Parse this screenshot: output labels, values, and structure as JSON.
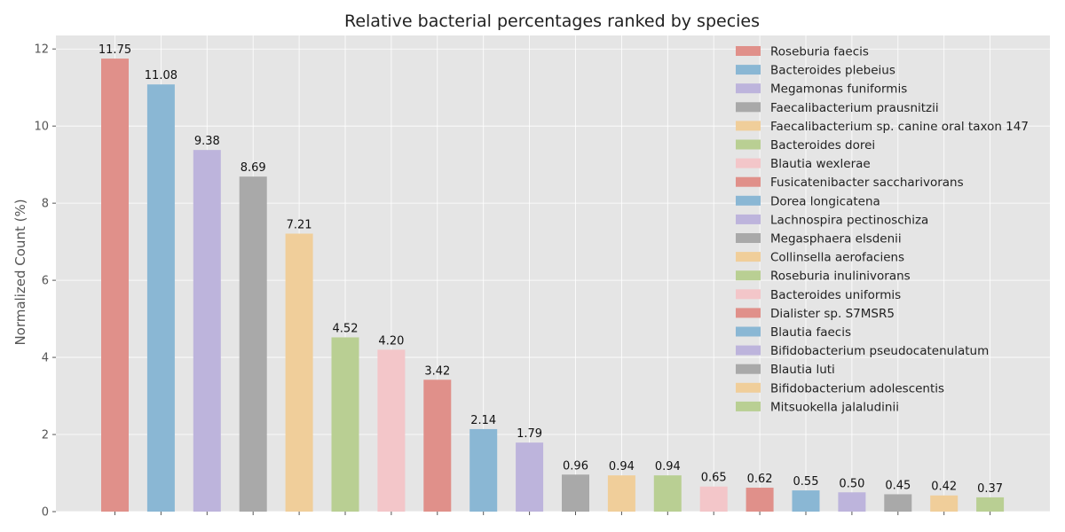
{
  "chart_data": {
    "type": "bar",
    "title": "Relative bacterial percentages ranked by species",
    "xlabel": "",
    "ylabel": "Normalized Count (%)",
    "ylim": [
      0,
      12.35
    ],
    "yticks": [
      0,
      2,
      4,
      6,
      8,
      10,
      12
    ],
    "grid": true,
    "legend_position": "top-right",
    "categories": [
      "Roseburia faecis",
      "Bacteroides plebeius",
      "Megamonas funiformis",
      "Faecalibacterium prausnitzii",
      "Faecalibacterium sp. canine oral taxon 147",
      "Bacteroides dorei",
      "Blautia wexlerae",
      "Fusicatenibacter saccharivorans",
      "Dorea longicatena",
      "Lachnospira pectinoschiza",
      "Megasphaera elsdenii",
      "Collinsella aerofaciens",
      "Roseburia inulinivorans",
      "Bacteroides uniformis",
      "Dialister sp. S7MSR5",
      "Blautia faecis",
      "Bifidobacterium pseudocatenulatum",
      "Blautia luti",
      "Bifidobacterium adolescentis",
      "Mitsuokella jalaludinii"
    ],
    "values": [
      11.75,
      11.08,
      9.38,
      8.69,
      7.21,
      4.52,
      4.2,
      3.42,
      2.14,
      1.79,
      0.96,
      0.94,
      0.94,
      0.65,
      0.62,
      0.55,
      0.5,
      0.45,
      0.42,
      0.37
    ],
    "value_labels": [
      "11.75",
      "11.08",
      "9.38",
      "8.69",
      "7.21",
      "4.52",
      "4.20",
      "3.42",
      "2.14",
      "1.79",
      "0.96",
      "0.94",
      "0.94",
      "0.65",
      "0.62",
      "0.55",
      "0.50",
      "0.45",
      "0.42",
      "0.37"
    ],
    "colors": [
      "#e0908a",
      "#8ab7d4",
      "#bdb4dc",
      "#a9a9a9",
      "#f0ce9a",
      "#b9cf93",
      "#f3c6c9"
    ],
    "background_color": "#e5e5e5",
    "grid_color": "#ffffff"
  }
}
